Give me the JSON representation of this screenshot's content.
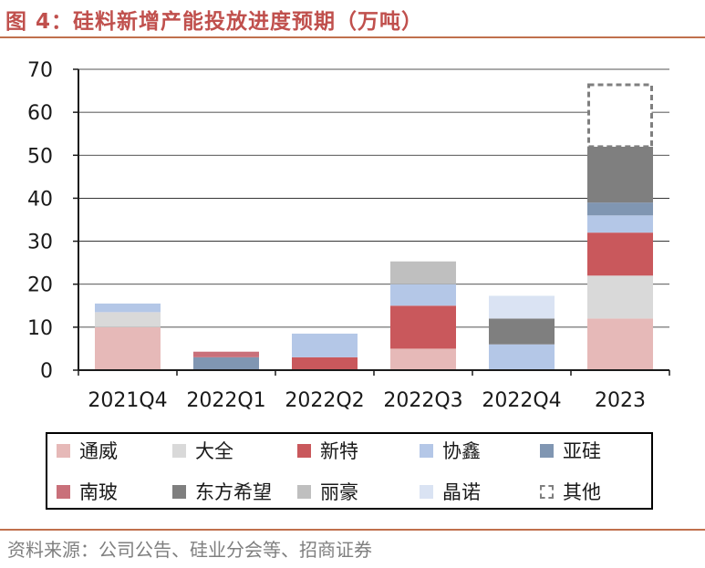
{
  "figure": {
    "title": "图 4：硅料新增产能投放进度预期（万吨）",
    "source": "资料来源：公司公告、硅业分会等、招商证券"
  },
  "chart_data": {
    "type": "bar",
    "stacked": true,
    "categories": [
      "2021Q4",
      "2022Q1",
      "2022Q2",
      "2022Q3",
      "2022Q4",
      "2023"
    ],
    "ylim": [
      0,
      70
    ],
    "yticks": [
      0,
      10,
      20,
      30,
      40,
      50,
      60,
      70
    ],
    "grid": true,
    "legend_position": "bottom",
    "series": [
      {
        "name": "通威",
        "color": "#e6b9b8",
        "values": [
          10,
          0,
          0,
          5,
          0,
          12
        ]
      },
      {
        "name": "大全",
        "color": "#d9d9d9",
        "values": [
          3.5,
          0,
          0,
          0,
          0,
          10
        ]
      },
      {
        "name": "新特",
        "color": "#c9585c",
        "values": [
          0,
          0,
          3,
          10,
          0,
          10
        ]
      },
      {
        "name": "协鑫",
        "color": "#b4c7e7",
        "values": [
          2,
          0,
          5.5,
          5,
          6,
          4
        ]
      },
      {
        "name": "亚硅",
        "color": "#8096b2",
        "values": [
          0,
          3,
          0,
          0,
          0,
          3
        ]
      },
      {
        "name": "南玻",
        "color": "#c9707a",
        "values": [
          0,
          1.3,
          0,
          0,
          0,
          0
        ]
      },
      {
        "name": "东方希望",
        "color": "#7f7f7f",
        "values": [
          0,
          0,
          0,
          0,
          6,
          13
        ]
      },
      {
        "name": "丽豪",
        "color": "#bfbfbf",
        "values": [
          0,
          0,
          0,
          5.3,
          0,
          0
        ]
      },
      {
        "name": "晶诺",
        "color": "#dae3f3",
        "values": [
          0,
          0,
          0,
          0,
          5.3,
          0
        ]
      },
      {
        "name": "其他",
        "color": "#ffffff",
        "border": "#7f7f7f",
        "dashed": true,
        "values": [
          0,
          0,
          0,
          0,
          0,
          14.7
        ]
      }
    ]
  }
}
